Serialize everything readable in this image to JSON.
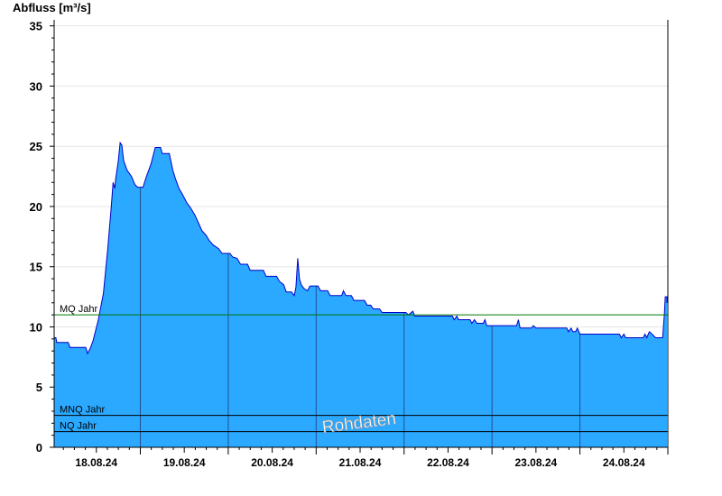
{
  "chart_data": {
    "type": "area",
    "title": "Abfluss [m³/s]",
    "watermark": "Rohdaten",
    "ylim": [
      0,
      35.5
    ],
    "yticks": [
      0,
      5,
      10,
      15,
      20,
      25,
      30,
      35
    ],
    "xlim": [
      -0.48,
      6.5
    ],
    "x_unit": "days relative to 18.08.24 12:00",
    "xticks": [
      {
        "label": "18.08.24",
        "x": 0
      },
      {
        "label": "19.08.24",
        "x": 1
      },
      {
        "label": "20.08.24",
        "x": 2
      },
      {
        "label": "21.08.24",
        "x": 3
      },
      {
        "label": "22.08.24",
        "x": 4
      },
      {
        "label": "23.08.24",
        "x": 5
      },
      {
        "label": "24.08.24",
        "x": 6
      }
    ],
    "fill_color": "#2ba8ff",
    "line_color": "#0000cc",
    "grid": true,
    "series": [
      {
        "points": [
          [
            -0.48,
            9.1
          ],
          [
            -0.46,
            9.1
          ],
          [
            -0.45,
            8.7
          ],
          [
            -0.32,
            8.7
          ],
          [
            -0.3,
            8.3
          ],
          [
            -0.12,
            8.3
          ],
          [
            -0.1,
            7.8
          ],
          [
            -0.07,
            8.2
          ],
          [
            -0.04,
            8.8
          ],
          [
            0.02,
            10.5
          ],
          [
            0.08,
            12.8
          ],
          [
            0.13,
            16.5
          ],
          [
            0.17,
            20.0
          ],
          [
            0.19,
            22.0
          ],
          [
            0.21,
            21.5
          ],
          [
            0.22,
            22.3
          ],
          [
            0.25,
            23.8
          ],
          [
            0.27,
            25.3
          ],
          [
            0.29,
            25.1
          ],
          [
            0.31,
            23.8
          ],
          [
            0.35,
            23.0
          ],
          [
            0.4,
            22.5
          ],
          [
            0.44,
            21.8
          ],
          [
            0.47,
            21.6
          ],
          [
            0.53,
            21.6
          ],
          [
            0.57,
            22.5
          ],
          [
            0.62,
            23.5
          ],
          [
            0.67,
            24.9
          ],
          [
            0.73,
            24.9
          ],
          [
            0.75,
            24.4
          ],
          [
            0.83,
            24.4
          ],
          [
            0.87,
            23.0
          ],
          [
            0.9,
            22.3
          ],
          [
            0.94,
            21.5
          ],
          [
            0.98,
            21.0
          ],
          [
            1.03,
            20.3
          ],
          [
            1.07,
            19.9
          ],
          [
            1.12,
            19.3
          ],
          [
            1.17,
            18.5
          ],
          [
            1.2,
            18.0
          ],
          [
            1.25,
            17.6
          ],
          [
            1.28,
            17.2
          ],
          [
            1.33,
            16.8
          ],
          [
            1.39,
            16.5
          ],
          [
            1.43,
            16.1
          ],
          [
            1.52,
            16.1
          ],
          [
            1.55,
            15.8
          ],
          [
            1.6,
            15.7
          ],
          [
            1.64,
            15.2
          ],
          [
            1.72,
            15.2
          ],
          [
            1.75,
            14.7
          ],
          [
            1.9,
            14.7
          ],
          [
            1.93,
            14.2
          ],
          [
            2.05,
            14.2
          ],
          [
            2.08,
            13.8
          ],
          [
            2.13,
            13.5
          ],
          [
            2.16,
            12.9
          ],
          [
            2.22,
            12.9
          ],
          [
            2.25,
            12.6
          ],
          [
            2.27,
            13.3
          ],
          [
            2.29,
            15.7
          ],
          [
            2.31,
            14.0
          ],
          [
            2.33,
            13.5
          ],
          [
            2.36,
            13.2
          ],
          [
            2.4,
            13.0
          ],
          [
            2.43,
            13.4
          ],
          [
            2.52,
            13.4
          ],
          [
            2.55,
            13.0
          ],
          [
            2.63,
            13.0
          ],
          [
            2.66,
            12.6
          ],
          [
            2.79,
            12.6
          ],
          [
            2.81,
            13.0
          ],
          [
            2.84,
            12.6
          ],
          [
            2.9,
            12.6
          ],
          [
            2.93,
            12.2
          ],
          [
            3.05,
            12.2
          ],
          [
            3.08,
            11.8
          ],
          [
            3.12,
            11.8
          ],
          [
            3.15,
            11.5
          ],
          [
            3.22,
            11.5
          ],
          [
            3.25,
            11.2
          ],
          [
            3.52,
            11.2
          ],
          [
            3.55,
            11.0
          ],
          [
            3.6,
            11.3
          ],
          [
            3.62,
            10.9
          ],
          [
            4.05,
            10.9
          ],
          [
            4.07,
            10.6
          ],
          [
            4.1,
            10.9
          ],
          [
            4.12,
            10.6
          ],
          [
            4.25,
            10.6
          ],
          [
            4.27,
            10.3
          ],
          [
            4.3,
            10.6
          ],
          [
            4.33,
            10.3
          ],
          [
            4.4,
            10.3
          ],
          [
            4.42,
            10.6
          ],
          [
            4.44,
            10.1
          ],
          [
            4.78,
            10.1
          ],
          [
            4.8,
            10.6
          ],
          [
            4.82,
            9.9
          ],
          [
            4.95,
            9.9
          ],
          [
            4.97,
            10.1
          ],
          [
            5.0,
            9.9
          ],
          [
            5.35,
            9.9
          ],
          [
            5.37,
            9.6
          ],
          [
            5.4,
            9.9
          ],
          [
            5.42,
            9.6
          ],
          [
            5.45,
            9.6
          ],
          [
            5.47,
            9.9
          ],
          [
            5.5,
            9.4
          ],
          [
            5.95,
            9.4
          ],
          [
            5.97,
            9.1
          ],
          [
            6.0,
            9.4
          ],
          [
            6.02,
            9.1
          ],
          [
            6.22,
            9.1
          ],
          [
            6.24,
            9.4
          ],
          [
            6.26,
            9.1
          ],
          [
            6.29,
            9.6
          ],
          [
            6.32,
            9.4
          ],
          [
            6.36,
            9.1
          ],
          [
            6.44,
            9.1
          ],
          [
            6.46,
            11.0
          ],
          [
            6.47,
            12.5
          ],
          [
            6.49,
            12.5
          ],
          [
            6.49,
            12.0
          ]
        ]
      }
    ],
    "reference_lines": [
      {
        "label": "MQ Jahr",
        "value": 11.0,
        "color": "#007700"
      },
      {
        "label": "MNQ Jahr",
        "value": 2.65,
        "color": "#000000"
      },
      {
        "label": "NQ Jahr",
        "value": 1.3,
        "color": "#000000"
      }
    ]
  }
}
